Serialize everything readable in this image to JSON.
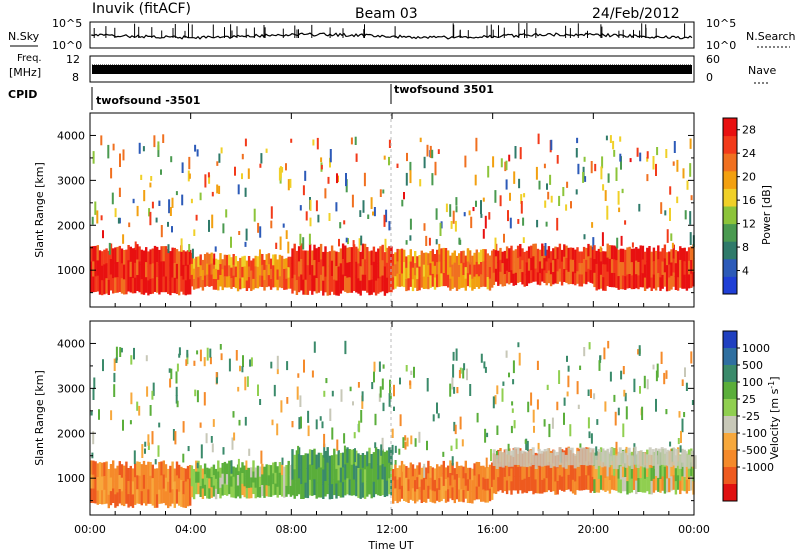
{
  "header": {
    "station": "Inuvik (fitACF)",
    "beam": "Beam 03",
    "date": "24/Feb/2012"
  },
  "strips": {
    "nsky_label": "N.Sky",
    "nsearch_label": "N.Search",
    "nsky_ticks": [
      "10^5",
      "10^0"
    ],
    "nsearch_ticks": [
      "10^5",
      "10^0"
    ],
    "freq_label_1": "Freq.",
    "freq_label_2": "[MHz]",
    "freq_ticks": [
      "12",
      "8"
    ],
    "nave_label": "Nave",
    "nave_ticks": [
      "60",
      "0"
    ],
    "cpid_label": "CPID",
    "cpid_segments": [
      {
        "name": "twofsound -3501",
        "start_hour": 0
      },
      {
        "name": "twofsound 3501",
        "start_hour": 12.0
      }
    ]
  },
  "chart_data": [
    {
      "type": "heatmap",
      "title": "",
      "ylabel": "Slant Range [km]",
      "xlabel": "",
      "xlim": [
        0,
        24
      ],
      "ylim": [
        180,
        4500
      ],
      "yticks": [
        1000,
        2000,
        3000,
        4000
      ],
      "colorbar": {
        "label": "Power [dB]",
        "ticks": [
          4,
          8,
          12,
          16,
          20,
          24,
          28
        ],
        "range": [
          0,
          30
        ],
        "colors": [
          "#1f3fd6",
          "#2c5ab8",
          "#2f7a6a",
          "#4a9a50",
          "#8cc43a",
          "#f0d028",
          "#f2a010",
          "#f07020",
          "#f23a1a",
          "#e81010"
        ]
      },
      "echo_bands": [
        {
          "from_hour": 0.0,
          "to_hour": 4.0,
          "range_km": [
            500,
            1500
          ],
          "level": 27
        },
        {
          "from_hour": 4.0,
          "to_hour": 8.0,
          "range_km": [
            600,
            1300
          ],
          "level": 22
        },
        {
          "from_hour": 8.0,
          "to_hour": 12.0,
          "range_km": [
            500,
            1500
          ],
          "level": 26
        },
        {
          "from_hour": 12.0,
          "to_hour": 16.0,
          "range_km": [
            600,
            1400
          ],
          "level": 22
        },
        {
          "from_hour": 16.0,
          "to_hour": 20.0,
          "range_km": [
            700,
            1500
          ],
          "level": 26
        },
        {
          "from_hour": 20.0,
          "to_hour": 24.0,
          "range_km": [
            600,
            1500
          ],
          "level": 26
        }
      ]
    },
    {
      "type": "heatmap",
      "title": "",
      "ylabel": "Slant Range [km]",
      "xlabel": "Time UT",
      "xlim": [
        0,
        24
      ],
      "ylim": [
        180,
        4500
      ],
      "xticks": [
        "00:00",
        "04:00",
        "08:00",
        "12:00",
        "16:00",
        "20:00",
        "00:00"
      ],
      "yticks": [
        1000,
        2000,
        3000,
        4000
      ],
      "colorbar": {
        "label": "Velocity [m s^-1]",
        "ticks": [
          1000,
          500,
          100,
          25,
          -25,
          -100,
          -500,
          -1000
        ],
        "colors": [
          "#2040c0",
          "#2f6fa0",
          "#3a8a6a",
          "#5aae3a",
          "#90cf50",
          "#c8c8b8",
          "#f7a83c",
          "#f58a2a",
          "#ee5a1f",
          "#e01010"
        ]
      },
      "echo_bands": [
        {
          "from_hour": 0.0,
          "to_hour": 4.0,
          "range_km": [
            400,
            1300
          ],
          "velocity": -200
        },
        {
          "from_hour": 4.0,
          "to_hour": 8.0,
          "range_km": [
            600,
            1300
          ],
          "velocity": 100
        },
        {
          "from_hour": 8.0,
          "to_hour": 12.0,
          "range_km": [
            600,
            1600
          ],
          "velocity": 200
        },
        {
          "from_hour": 12.0,
          "to_hour": 16.0,
          "range_km": [
            500,
            1300
          ],
          "velocity": -200
        },
        {
          "from_hour": 16.0,
          "to_hour": 20.0,
          "range_km": [
            700,
            1600
          ],
          "velocity": -300
        },
        {
          "from_hour": 20.0,
          "to_hour": 24.0,
          "range_km": [
            700,
            1600
          ],
          "velocity": 0
        }
      ],
      "ground_scatter_band": {
        "from_hour": 16.0,
        "to_hour": 24.0,
        "range_km": [
          900,
          1600
        ],
        "color": "#c8c8b8"
      }
    }
  ],
  "cb_power": {
    "label": "Power [dB]"
  },
  "cb_vel": {
    "label_prefix": "Velocity [m s",
    "label_sup": "-1",
    "label_suffix": "]"
  }
}
